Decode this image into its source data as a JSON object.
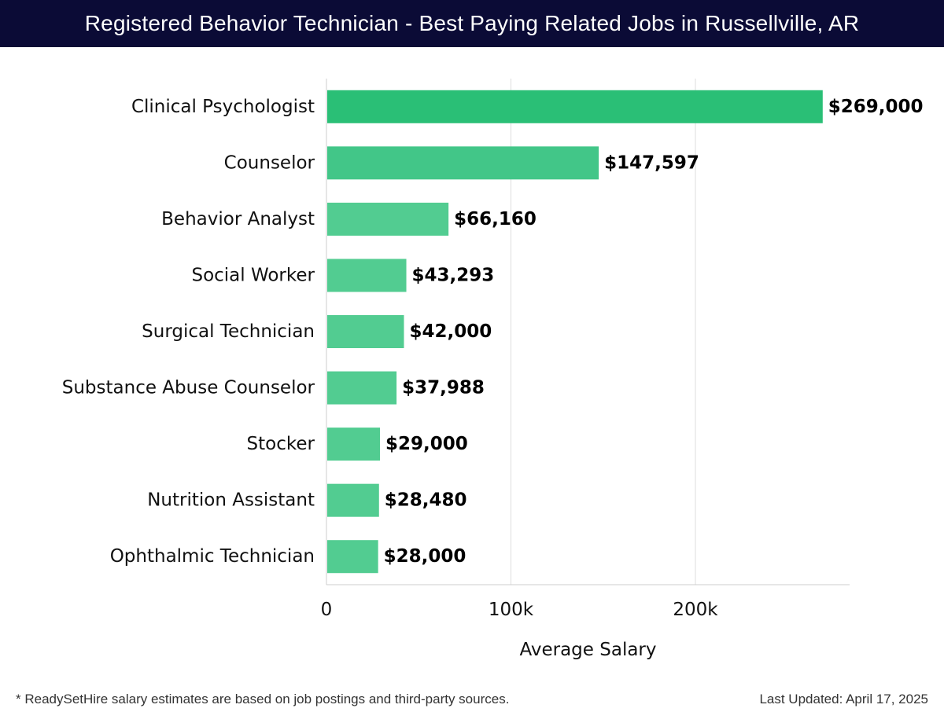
{
  "header": {
    "title": "Registered Behavior Technician - Best Paying Related Jobs in Russellville, AR"
  },
  "chart_data": {
    "type": "bar",
    "orientation": "horizontal",
    "title": "Registered Behavior Technician - Best Paying Related Jobs in Russellville, AR",
    "xlabel": "Average Salary",
    "ylabel": "",
    "xlim": [
      0,
      280000
    ],
    "x_ticks": [
      0,
      100000,
      200000
    ],
    "x_tick_labels": [
      "0",
      "100k",
      "200k"
    ],
    "grid": "vertical",
    "categories": [
      "Clinical Psychologist",
      "Counselor",
      "Behavior Analyst",
      "Social Worker",
      "Surgical Technician",
      "Substance Abuse Counselor",
      "Stocker",
      "Nutrition Assistant",
      "Ophthalmic Technician"
    ],
    "values": [
      269000,
      147597,
      66160,
      43293,
      42000,
      37988,
      29000,
      28480,
      28000
    ],
    "value_labels": [
      "$269,000",
      "$147,597",
      "$66,160",
      "$43,293",
      "$42,000",
      "$37,988",
      "$29,000",
      "$28,480",
      "$28,000"
    ],
    "colors": {
      "top_bar": "#2abf76",
      "second_bar": "#42c688",
      "other_bars": "#52cc91",
      "grid": "#dddddd",
      "axis": "#cccccc"
    }
  },
  "footer": {
    "note": "* ReadySetHire salary estimates are based on job postings and third-party sources.",
    "updated": "Last Updated: April 17, 2025"
  }
}
